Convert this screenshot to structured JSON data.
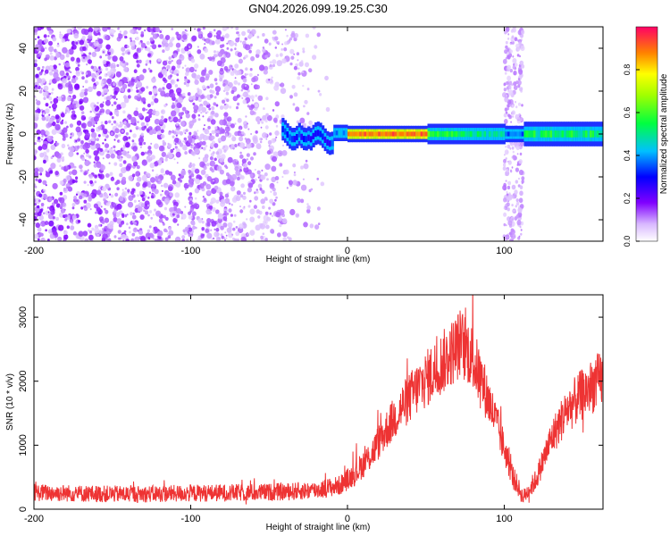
{
  "chart_data": [
    {
      "type": "heatmap",
      "title": "GN04.2026.099.19.25.C30",
      "xlabel": "Height of straight line (km)",
      "ylabel": "Frequency (Hz)",
      "xlim": [
        -200,
        163
      ],
      "ylim": [
        -50,
        50
      ],
      "xticks": [
        -200,
        -100,
        0,
        100
      ],
      "yticks": [
        -40,
        -20,
        0,
        20,
        40
      ],
      "colorbar": {
        "label": "Normalized spectral amplitude",
        "range": [
          0,
          1
        ],
        "ticks": [
          0.0,
          0.2,
          0.4,
          0.6,
          0.8
        ],
        "tick_labels": [
          "0.0",
          "0.2",
          "0.4",
          "0.6",
          "0.8"
        ]
      },
      "features": [
        {
          "name": "broadband noise",
          "x_range": [
            -200,
            -10
          ],
          "y_range": [
            -50,
            50
          ],
          "amplitude": [
            0.05,
            0.18
          ]
        },
        {
          "name": "carrier line",
          "x_range": [
            -42,
            163
          ],
          "frequency": 0,
          "amplitude_peak": 0.95,
          "peak_x_range": [
            0,
            50
          ]
        },
        {
          "name": "noise band",
          "x_range": [
            100,
            112
          ],
          "y_range": [
            -50,
            50
          ],
          "amplitude": [
            0.05,
            0.12
          ]
        }
      ]
    },
    {
      "type": "line",
      "title": "",
      "xlabel": "Height of straight line (km)",
      "ylabel": "SNR (10 * v/v)",
      "xlim": [
        -200,
        163
      ],
      "ylim": [
        0,
        3350
      ],
      "xticks": [
        -200,
        -100,
        0,
        100
      ],
      "yticks": [
        0,
        1000,
        2000,
        3000
      ],
      "series": [
        {
          "name": "SNR",
          "color": "#ee3333",
          "x": [
            -200,
            -180,
            -160,
            -140,
            -120,
            -100,
            -80,
            -60,
            -40,
            -20,
            -5,
            5,
            15,
            25,
            35,
            45,
            55,
            65,
            72,
            78,
            85,
            95,
            105,
            112,
            120,
            130,
            140,
            150,
            160,
            163
          ],
          "values": [
            260,
            250,
            240,
            235,
            240,
            250,
            255,
            260,
            270,
            300,
            370,
            560,
            850,
            1250,
            1600,
            1900,
            2150,
            2400,
            2600,
            2450,
            2050,
            1350,
            550,
            180,
            450,
            1100,
            1550,
            1800,
            2000,
            2050
          ]
        }
      ]
    }
  ]
}
